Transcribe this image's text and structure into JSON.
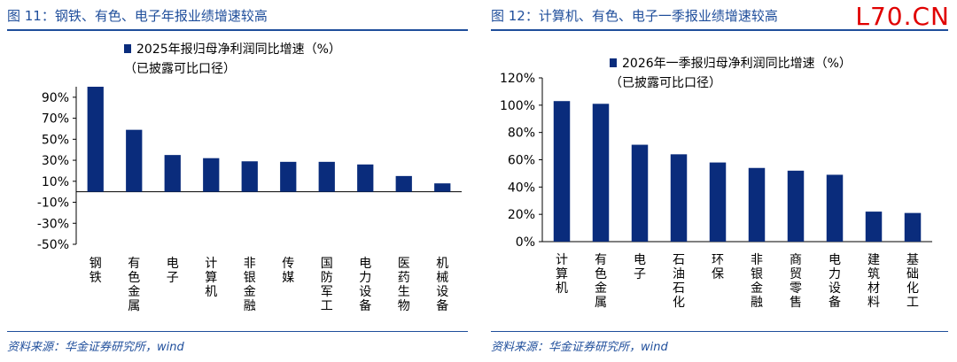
{
  "watermark": "L70.CN",
  "left_panel": {
    "title": "图 11：钢铁、有色、电子年报业绩增速较高",
    "source": "资料来源：华金证券研究所，wind"
  },
  "right_panel": {
    "title": "图 12：计算机、有色、电子一季报业绩增速较高",
    "source": "资料来源：华金证券研究所，wind"
  },
  "chart_data": [
    {
      "type": "bar",
      "legend": [
        "2025年报归母净利润同比增速（%）",
        "（已披露可比口径）"
      ],
      "categories": [
        "钢铁",
        "有色金属",
        "电子",
        "计算机",
        "非银金融",
        "传媒",
        "国防军工",
        "电力设备",
        "医药生物",
        "机械设备"
      ],
      "values": [
        100,
        59,
        35,
        32,
        29,
        28.5,
        28.5,
        26,
        15,
        8
      ],
      "ylim": [
        -50,
        100
      ],
      "yticks": [
        90,
        70,
        50,
        30,
        10,
        -10,
        -30,
        -50
      ],
      "ytick_labels": [
        "90%",
        "70%",
        "50%",
        "30%",
        "10%",
        "-10%",
        "-30%",
        "-50%"
      ],
      "bar_color": "#0a2c7c",
      "grid": false,
      "legend_position": "top"
    },
    {
      "type": "bar",
      "legend": [
        "2026年一季报归母净利润同比增速（%）",
        "（已披露可比口径）"
      ],
      "categories": [
        "计算机",
        "有色金属",
        "电子",
        "石油石化",
        "环保",
        "非银金融",
        "商贸零售",
        "电力设备",
        "建筑材料",
        "基础化工"
      ],
      "values": [
        103,
        101,
        71,
        64,
        58,
        54,
        52,
        49,
        22,
        21
      ],
      "ylim": [
        0,
        120
      ],
      "yticks": [
        120,
        100,
        80,
        60,
        40,
        20,
        0
      ],
      "ytick_labels": [
        "120%",
        "100%",
        "80%",
        "60%",
        "40%",
        "20%",
        "0%"
      ],
      "bar_color": "#0a2c7c",
      "grid": false,
      "legend_position": "top"
    }
  ]
}
